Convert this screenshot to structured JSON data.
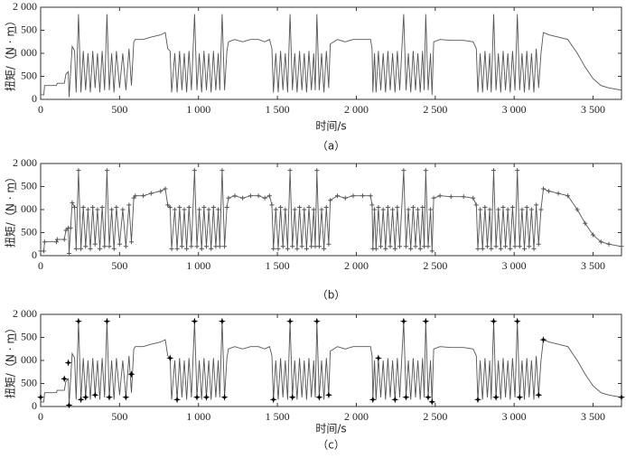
{
  "chart_data": [
    {
      "type": "line",
      "caption": "（a）",
      "xlabel": "时间/s",
      "ylabel": "扭矩/（N · m）",
      "color": "#555555",
      "xlim": [
        0,
        3680
      ],
      "ylim": [
        0,
        2000
      ],
      "xticks": [
        0,
        500,
        {
          "value": 1000,
          "label": "1 000"
        },
        {
          "value": 1500,
          "label": "1 500"
        },
        {
          "value": 2000,
          "label": "2 000"
        },
        {
          "value": 2500,
          "label": "2 500"
        },
        {
          "value": 3000,
          "label": "3 000"
        },
        {
          "value": 3500,
          "label": "3 500"
        }
      ],
      "yticks": [
        0,
        500,
        {
          "value": 1000,
          "label": "1 000"
        },
        {
          "value": 1500,
          "label": "1 500"
        },
        {
          "value": 2000,
          "label": "2 000"
        }
      ],
      "x": [
        0,
        20,
        25,
        100,
        105,
        150,
        160,
        175,
        180,
        190,
        200,
        215,
        225,
        240,
        255,
        270,
        285,
        300,
        315,
        330,
        345,
        360,
        375,
        390,
        405,
        420,
        435,
        450,
        465,
        480,
        500,
        520,
        540,
        560,
        575,
        590,
        600,
        650,
        700,
        760,
        790,
        805,
        820,
        830,
        850,
        865,
        880,
        895,
        910,
        925,
        940,
        955,
        975,
        990,
        1005,
        1020,
        1035,
        1050,
        1065,
        1080,
        1095,
        1110,
        1125,
        1135,
        1150,
        1165,
        1180,
        1190,
        1230,
        1280,
        1330,
        1380,
        1420,
        1450,
        1465,
        1475,
        1490,
        1505,
        1520,
        1535,
        1550,
        1565,
        1580,
        1595,
        1610,
        1625,
        1640,
        1655,
        1670,
        1685,
        1700,
        1715,
        1730,
        1740,
        1750,
        1765,
        1780,
        1795,
        1810,
        1825,
        1835,
        1880,
        1930,
        1980,
        2040,
        2090,
        2100,
        2105,
        2115,
        2125,
        2140,
        2155,
        2170,
        2185,
        2200,
        2215,
        2230,
        2245,
        2260,
        2275,
        2300,
        2315,
        2330,
        2345,
        2360,
        2375,
        2390,
        2405,
        2420,
        2430,
        2440,
        2455,
        2470,
        2480,
        2490,
        2530,
        2600,
        2680,
        2740,
        2760,
        2770,
        2785,
        2800,
        2815,
        2830,
        2845,
        2855,
        2870,
        2885,
        2900,
        2915,
        2930,
        2945,
        2960,
        2975,
        2990,
        3005,
        3020,
        3035,
        3050,
        3065,
        3080,
        3095,
        3110,
        3125,
        3140,
        3155,
        3170,
        3185,
        3220,
        3280,
        3340,
        3400,
        3450,
        3500,
        3550,
        3600,
        3680
      ],
      "values": [
        100,
        100,
        300,
        300,
        350,
        350,
        550,
        600,
        50,
        600,
        1150,
        1050,
        150,
        1850,
        150,
        1050,
        200,
        1000,
        150,
        1050,
        250,
        1000,
        150,
        1050,
        200,
        1850,
        200,
        1000,
        150,
        1050,
        250,
        1000,
        200,
        1100,
        300,
        1250,
        1300,
        1300,
        1350,
        1400,
        1450,
        1100,
        1050,
        150,
        1000,
        150,
        1050,
        200,
        1000,
        150,
        1050,
        200,
        1850,
        200,
        1000,
        150,
        1050,
        200,
        1000,
        150,
        1050,
        200,
        1000,
        200,
        1850,
        200,
        1050,
        1250,
        1300,
        1250,
        1300,
        1300,
        1250,
        1300,
        1100,
        150,
        1000,
        150,
        1050,
        200,
        1000,
        150,
        1850,
        200,
        1000,
        150,
        1050,
        200,
        1000,
        150,
        1050,
        200,
        1000,
        200,
        1850,
        200,
        1000,
        150,
        1050,
        250,
        1200,
        1300,
        1250,
        1300,
        1300,
        1300,
        1100,
        150,
        1000,
        150,
        1050,
        200,
        1000,
        150,
        1050,
        200,
        1000,
        150,
        1050,
        200,
        1850,
        200,
        1000,
        150,
        1050,
        200,
        1000,
        150,
        1050,
        200,
        1850,
        200,
        1000,
        100,
        1250,
        1300,
        1280,
        1280,
        1250,
        1100,
        150,
        1000,
        150,
        1050,
        200,
        1000,
        150,
        1850,
        200,
        1000,
        150,
        1050,
        200,
        1000,
        150,
        1050,
        200,
        1850,
        200,
        1000,
        150,
        1050,
        200,
        1000,
        150,
        1100,
        250,
        1000,
        1450,
        1400,
        1350,
        1300,
        1000,
        700,
        450,
        300,
        250,
        200
      ]
    },
    {
      "type": "line",
      "caption": "（b）",
      "ylabel": "扭矩/（N · m）",
      "color": "#555555",
      "marker": "+",
      "marker_color": "#555555",
      "xlim": [
        0,
        3680
      ],
      "ylim": [
        0,
        2000
      ],
      "xticks": [
        0,
        500,
        {
          "value": 1000,
          "label": "1 000"
        },
        {
          "value": 1500,
          "label": "1 500"
        },
        {
          "value": 2000,
          "label": "2 000"
        },
        {
          "value": 2500,
          "label": "2 500"
        },
        {
          "value": 3000,
          "label": "3 000"
        },
        {
          "value": 3500,
          "label": "3 500"
        }
      ],
      "yticks": [
        0,
        500,
        {
          "value": 1000,
          "label": "1 000"
        },
        {
          "value": 1500,
          "label": "1 500"
        },
        {
          "value": 2000,
          "label": "2 000"
        }
      ],
      "x": [
        0,
        20,
        25,
        100,
        105,
        150,
        160,
        175,
        180,
        190,
        200,
        215,
        225,
        240,
        255,
        270,
        285,
        300,
        315,
        330,
        345,
        360,
        375,
        390,
        405,
        420,
        435,
        450,
        465,
        480,
        500,
        520,
        540,
        560,
        575,
        590,
        600,
        650,
        700,
        760,
        790,
        805,
        820,
        830,
        850,
        865,
        880,
        895,
        910,
        925,
        940,
        955,
        975,
        990,
        1005,
        1020,
        1035,
        1050,
        1065,
        1080,
        1095,
        1110,
        1125,
        1135,
        1150,
        1165,
        1180,
        1190,
        1230,
        1280,
        1330,
        1380,
        1420,
        1450,
        1465,
        1475,
        1490,
        1505,
        1520,
        1535,
        1550,
        1565,
        1580,
        1595,
        1610,
        1625,
        1640,
        1655,
        1670,
        1685,
        1700,
        1715,
        1730,
        1740,
        1750,
        1765,
        1780,
        1795,
        1810,
        1825,
        1835,
        1880,
        1930,
        1980,
        2040,
        2090,
        2100,
        2105,
        2115,
        2125,
        2140,
        2155,
        2170,
        2185,
        2200,
        2215,
        2230,
        2245,
        2260,
        2275,
        2300,
        2315,
        2330,
        2345,
        2360,
        2375,
        2390,
        2405,
        2420,
        2430,
        2440,
        2455,
        2470,
        2480,
        2490,
        2530,
        2600,
        2680,
        2740,
        2760,
        2770,
        2785,
        2800,
        2815,
        2830,
        2845,
        2855,
        2870,
        2885,
        2900,
        2915,
        2930,
        2945,
        2960,
        2975,
        2990,
        3005,
        3020,
        3035,
        3050,
        3065,
        3080,
        3095,
        3110,
        3125,
        3140,
        3155,
        3170,
        3185,
        3220,
        3280,
        3340,
        3400,
        3450,
        3500,
        3550,
        3600,
        3680
      ],
      "values": [
        100,
        100,
        300,
        300,
        350,
        350,
        550,
        600,
        50,
        600,
        1150,
        1050,
        150,
        1850,
        150,
        1050,
        200,
        1000,
        150,
        1050,
        250,
        1000,
        150,
        1050,
        200,
        1850,
        200,
        1000,
        150,
        1050,
        250,
        1000,
        200,
        1100,
        300,
        1250,
        1300,
        1300,
        1350,
        1400,
        1450,
        1100,
        1050,
        150,
        1000,
        150,
        1050,
        200,
        1000,
        150,
        1050,
        200,
        1850,
        200,
        1000,
        150,
        1050,
        200,
        1000,
        150,
        1050,
        200,
        1000,
        200,
        1850,
        200,
        1050,
        1250,
        1300,
        1250,
        1300,
        1300,
        1250,
        1300,
        1100,
        150,
        1000,
        150,
        1050,
        200,
        1000,
        150,
        1850,
        200,
        1000,
        150,
        1050,
        200,
        1000,
        150,
        1050,
        200,
        1000,
        200,
        1850,
        200,
        1000,
        150,
        1050,
        250,
        1200,
        1300,
        1250,
        1300,
        1300,
        1300,
        1100,
        150,
        1000,
        150,
        1050,
        200,
        1000,
        150,
        1050,
        200,
        1000,
        150,
        1050,
        200,
        1850,
        200,
        1000,
        150,
        1050,
        200,
        1000,
        150,
        1050,
        200,
        1850,
        200,
        1000,
        100,
        1250,
        1300,
        1280,
        1280,
        1250,
        1100,
        150,
        1000,
        150,
        1050,
        200,
        1000,
        150,
        1850,
        200,
        1000,
        150,
        1050,
        200,
        1000,
        150,
        1050,
        200,
        1850,
        200,
        1000,
        150,
        1050,
        200,
        1000,
        150,
        1100,
        250,
        1000,
        1450,
        1400,
        1350,
        1300,
        1000,
        700,
        450,
        300,
        250,
        200
      ]
    },
    {
      "type": "line",
      "caption": "（c）",
      "xlabel": "时间/s",
      "ylabel": "扭矩/（N · m）",
      "color": "#555555",
      "marker": "star",
      "marker_color": "#000000",
      "xlim": [
        0,
        3680
      ],
      "ylim": [
        0,
        2000
      ],
      "xticks": [
        0,
        500,
        {
          "value": 1000,
          "label": "1 000"
        },
        {
          "value": 1500,
          "label": "1 500"
        },
        {
          "value": 2000,
          "label": "2 000"
        },
        {
          "value": 2500,
          "label": "2 500"
        },
        {
          "value": 3000,
          "label": "3 000"
        },
        {
          "value": 3500,
          "label": "3 500"
        }
      ],
      "yticks": [
        0,
        500,
        {
          "value": 1000,
          "label": "1 000"
        },
        {
          "value": 1500,
          "label": "1 500"
        },
        {
          "value": 2000,
          "label": "2 000"
        }
      ],
      "x": [
        0,
        20,
        25,
        100,
        105,
        150,
        160,
        175,
        180,
        190,
        200,
        215,
        225,
        240,
        255,
        270,
        285,
        300,
        315,
        330,
        345,
        360,
        375,
        390,
        405,
        420,
        435,
        450,
        465,
        480,
        500,
        520,
        540,
        560,
        575,
        590,
        600,
        650,
        700,
        760,
        790,
        805,
        820,
        830,
        850,
        865,
        880,
        895,
        910,
        925,
        940,
        955,
        975,
        990,
        1005,
        1020,
        1035,
        1050,
        1065,
        1080,
        1095,
        1110,
        1125,
        1135,
        1150,
        1165,
        1180,
        1190,
        1230,
        1280,
        1330,
        1380,
        1420,
        1450,
        1465,
        1475,
        1490,
        1505,
        1520,
        1535,
        1550,
        1565,
        1580,
        1595,
        1610,
        1625,
        1640,
        1655,
        1670,
        1685,
        1700,
        1715,
        1730,
        1740,
        1750,
        1765,
        1780,
        1795,
        1810,
        1825,
        1835,
        1880,
        1930,
        1980,
        2040,
        2090,
        2100,
        2105,
        2115,
        2125,
        2140,
        2155,
        2170,
        2185,
        2200,
        2215,
        2230,
        2245,
        2260,
        2275,
        2300,
        2315,
        2330,
        2345,
        2360,
        2375,
        2390,
        2405,
        2420,
        2430,
        2440,
        2455,
        2470,
        2480,
        2490,
        2530,
        2600,
        2680,
        2740,
        2760,
        2770,
        2785,
        2800,
        2815,
        2830,
        2845,
        2855,
        2870,
        2885,
        2900,
        2915,
        2930,
        2945,
        2960,
        2975,
        2990,
        3005,
        3020,
        3035,
        3050,
        3065,
        3080,
        3095,
        3110,
        3125,
        3140,
        3155,
        3170,
        3185,
        3220,
        3280,
        3340,
        3400,
        3450,
        3500,
        3550,
        3600,
        3680
      ],
      "values": [
        100,
        100,
        300,
        300,
        350,
        350,
        550,
        600,
        50,
        600,
        1150,
        1050,
        150,
        1850,
        150,
        1050,
        200,
        1000,
        150,
        1050,
        250,
        1000,
        150,
        1050,
        200,
        1850,
        200,
        1000,
        150,
        1050,
        250,
        1000,
        200,
        1100,
        300,
        1250,
        1300,
        1300,
        1350,
        1400,
        1450,
        1100,
        1050,
        150,
        1000,
        150,
        1050,
        200,
        1000,
        150,
        1050,
        200,
        1850,
        200,
        1000,
        150,
        1050,
        200,
        1000,
        150,
        1050,
        200,
        1000,
        200,
        1850,
        200,
        1050,
        1250,
        1300,
        1250,
        1300,
        1300,
        1250,
        1300,
        1100,
        150,
        1000,
        150,
        1050,
        200,
        1000,
        150,
        1850,
        200,
        1000,
        150,
        1050,
        200,
        1000,
        150,
        1050,
        200,
        1000,
        200,
        1850,
        200,
        1000,
        150,
        1050,
        250,
        1200,
        1300,
        1250,
        1300,
        1300,
        1300,
        1100,
        150,
        1000,
        150,
        1050,
        200,
        1000,
        150,
        1050,
        200,
        1000,
        150,
        1050,
        200,
        1850,
        200,
        1000,
        150,
        1050,
        200,
        1000,
        150,
        1050,
        200,
        1850,
        200,
        1000,
        100,
        1250,
        1300,
        1280,
        1280,
        1250,
        1100,
        150,
        1000,
        150,
        1050,
        200,
        1000,
        150,
        1850,
        200,
        1000,
        150,
        1050,
        200,
        1000,
        150,
        1050,
        200,
        1850,
        200,
        1000,
        150,
        1050,
        200,
        1000,
        150,
        1100,
        250,
        1000,
        1450,
        1400,
        1350,
        1300,
        1000,
        700,
        450,
        300,
        250,
        200
      ],
      "marker_x": [
        0,
        150,
        175,
        180,
        240,
        255,
        285,
        345,
        420,
        435,
        540,
        575,
        820,
        865,
        975,
        990,
        1050,
        1150,
        1165,
        1475,
        1580,
        1595,
        1750,
        1765,
        1825,
        2105,
        2140,
        2245,
        2300,
        2315,
        2440,
        2455,
        2480,
        2770,
        2870,
        2885,
        3020,
        3035,
        3155,
        3185,
        3680
      ],
      "marker_values": [
        200,
        600,
        950,
        30,
        1850,
        150,
        200,
        250,
        1850,
        200,
        200,
        700,
        1050,
        150,
        1850,
        200,
        200,
        1850,
        200,
        150,
        1850,
        200,
        1850,
        200,
        250,
        150,
        1050,
        150,
        1850,
        200,
        1850,
        200,
        100,
        150,
        1850,
        200,
        1850,
        200,
        250,
        1450,
        200
      ]
    }
  ]
}
